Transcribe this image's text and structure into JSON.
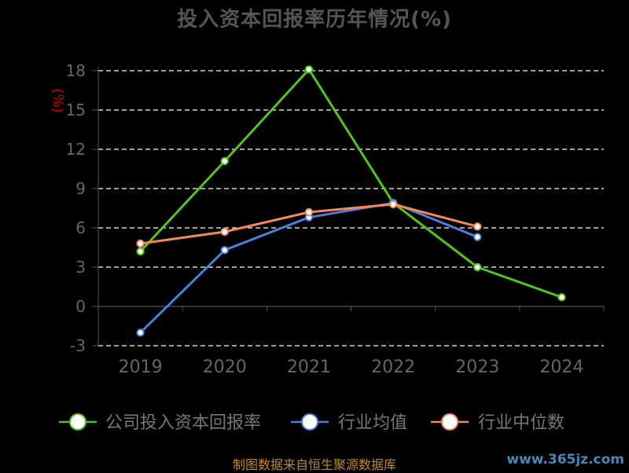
{
  "chart_data": {
    "type": "line",
    "title": "投入资本回报率历年情况(%)",
    "ylabel": "(%)",
    "categories": [
      "2019",
      "2020",
      "2021",
      "2022",
      "2023",
      "2024"
    ],
    "yticks": [
      18,
      15,
      12,
      9,
      6,
      3,
      0,
      -3
    ],
    "ylim": [
      -3,
      18
    ],
    "grid": true,
    "legend_position": "bottom",
    "series": [
      {
        "name": "公司投入资本回报率",
        "color": "#52c41a",
        "values": [
          4.2,
          11.1,
          18.1,
          7.9,
          3.0,
          0.7
        ]
      },
      {
        "name": "行业均值",
        "color": "#4a7fe0",
        "values": [
          -2.0,
          4.3,
          6.8,
          7.9,
          5.3,
          null
        ]
      },
      {
        "name": "行业中位数",
        "color": "#f08a5d",
        "values": [
          4.8,
          5.7,
          7.2,
          7.8,
          6.1,
          null
        ]
      }
    ]
  },
  "source_text": "制图数据来自恒生聚源数据库",
  "watermark_text": "www.365jz.com"
}
